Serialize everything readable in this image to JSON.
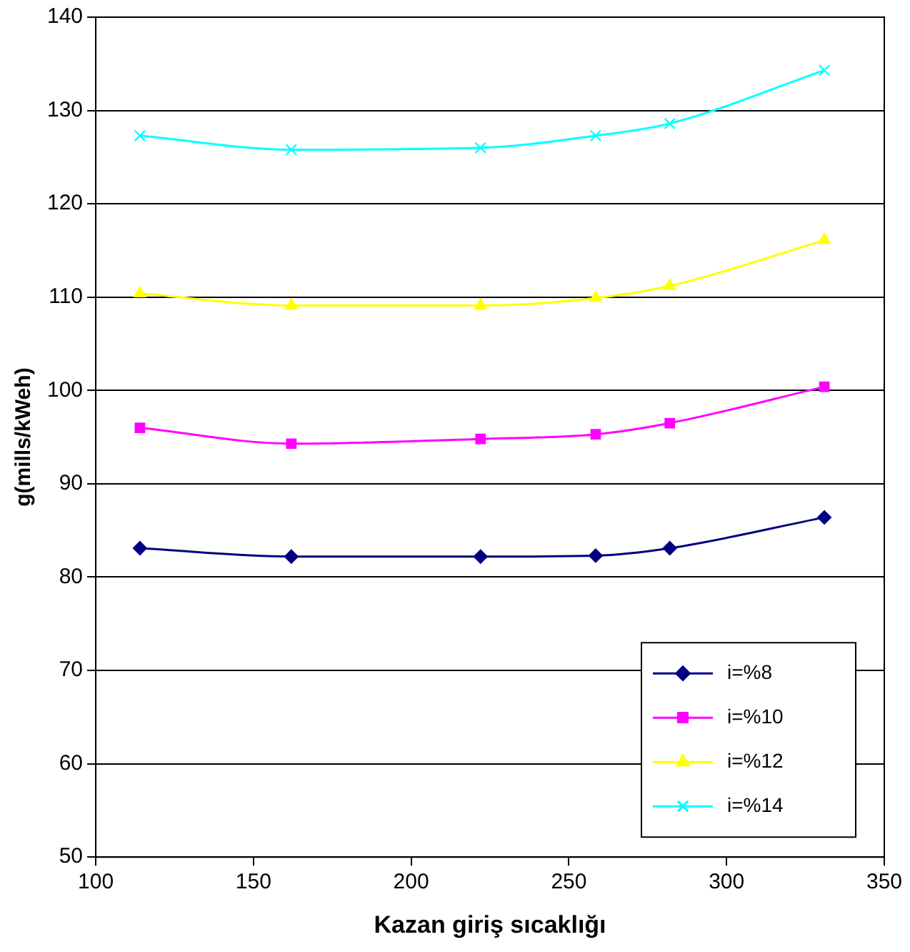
{
  "chart_data": {
    "type": "line",
    "xlabel": "Kazan giriş sıcaklığı",
    "ylabel": "g(mills/kWeh)",
    "x": [
      114,
      162,
      222,
      258.5,
      282,
      331
    ],
    "xlim": [
      100,
      350
    ],
    "xticks": [
      100,
      150,
      200,
      250,
      300,
      350
    ],
    "ylim": [
      50,
      140
    ],
    "yticks": [
      50,
      60,
      70,
      80,
      90,
      100,
      110,
      120,
      130,
      140
    ],
    "grid": "y",
    "legend": "bottom right",
    "line_style": "solid",
    "series": [
      {
        "name": "i=%8",
        "color": "#000080",
        "marker": "diamond",
        "values": [
          83.1,
          82.2,
          82.2,
          82.3,
          83.1,
          86.4
        ]
      },
      {
        "name": "i=%10",
        "color": "#ff00ff",
        "marker": "square",
        "values": [
          96.0,
          94.3,
          94.8,
          95.3,
          96.5,
          100.4
        ]
      },
      {
        "name": "i=%12",
        "color": "#ffff00",
        "marker": "triangle",
        "values": [
          110.4,
          109.1,
          109.1,
          109.9,
          111.2,
          116.1
        ]
      },
      {
        "name": "i=%14",
        "color": "#00ffff",
        "marker": "cross",
        "values": [
          127.3,
          125.8,
          126.0,
          127.3,
          128.6,
          134.3
        ]
      }
    ]
  }
}
